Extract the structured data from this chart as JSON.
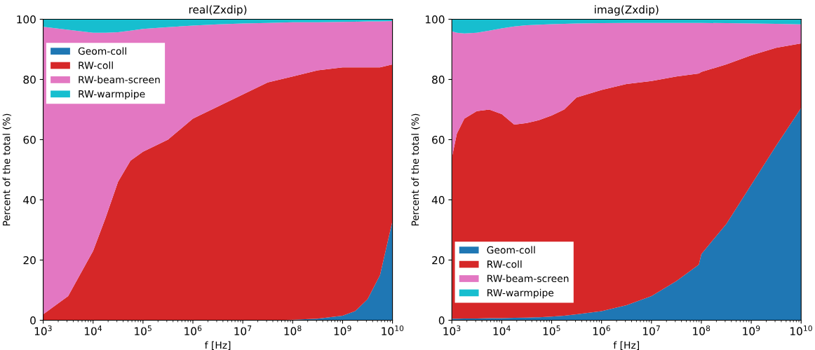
{
  "chart_data": [
    {
      "type": "area",
      "stacked": true,
      "title": "real(Zxdip)",
      "xlabel": "f [Hz]",
      "ylabel": "Percent of the total (%)",
      "log": "x",
      "legend": "top left",
      "grid": false,
      "x": [
        1000.0,
        3162.0,
        10000.0,
        17780.0,
        31620.0,
        56230.0,
        100000.0,
        316200.0,
        1000000.0,
        3162000.0,
        10000000.0,
        31620000.0,
        100000000.0,
        316200000.0,
        1000000000.0,
        1778000000.0,
        3162000000.0,
        5623000000.0,
        10000000000.0
      ],
      "xlim": [
        1000.0,
        10000000000.0
      ],
      "xticks": [
        {
          "value": 1000.0,
          "label": "10$^{3}$"
        },
        {
          "value": 10000.0,
          "label": "10$^{4}$"
        },
        {
          "value": 100000.0,
          "label": "10$^{5}$"
        },
        {
          "value": 1000000.0,
          "label": "10$^{6}$"
        },
        {
          "value": 10000000.0,
          "label": "10$^{7}$"
        },
        {
          "value": 100000000.0,
          "label": "10$^{8}$"
        },
        {
          "value": 1000000000.0,
          "label": "10$^{9}$"
        },
        {
          "value": 10000000000.0,
          "label": "10$^{10}$"
        }
      ],
      "ylim": [
        0,
        100
      ],
      "yticks": [
        0,
        20,
        40,
        60,
        80,
        100
      ],
      "series": [
        {
          "name": "Geom-coll",
          "color": "#1f77b4",
          "values": [
            0,
            0,
            0,
            0,
            0,
            0,
            0,
            0,
            0,
            0,
            0,
            0,
            0.2,
            0.5,
            1.5,
            3,
            7,
            15,
            33
          ]
        },
        {
          "name": "RW-coll",
          "color": "#d62728",
          "values": [
            2,
            8,
            23,
            34,
            46,
            53,
            56,
            60,
            67,
            71,
            75,
            79,
            80.8,
            82.5,
            82.5,
            81,
            77,
            69,
            52
          ]
        },
        {
          "name": "RW-beam-screen",
          "color": "#e377c2",
          "values": [
            95.5,
            88.5,
            72.5,
            61.5,
            49.7,
            43.2,
            40.8,
            37.4,
            30.9,
            27.3,
            23.6,
            19.8,
            18,
            16,
            15.1,
            15.2,
            15.3,
            15.3,
            14.4
          ]
        },
        {
          "name": "RW-warmpipe",
          "color": "#17becf",
          "values": [
            2.5,
            3.5,
            4.5,
            4.5,
            4.3,
            3.8,
            3.2,
            2.6,
            2.1,
            1.7,
            1.4,
            1.2,
            1,
            1,
            0.9,
            0.8,
            0.7,
            0.7,
            0.6
          ]
        }
      ]
    },
    {
      "type": "area",
      "stacked": true,
      "title": "imag(Zxdip)",
      "xlabel": "f [Hz]",
      "ylabel": "Percent of the total (%)",
      "log": "x",
      "legend": "bottom left",
      "grid": false,
      "x": [
        1000.0,
        1259.0,
        1778.0,
        3162.0,
        5623.0,
        10000.0,
        17780.0,
        31620.0,
        56230.0,
        100000.0,
        177800.0,
        316200.0,
        1000000.0,
        3162000.0,
        10000000.0,
        31620000.0,
        89130000.0,
        100000000.0,
        316200000.0,
        1000000000.0,
        3162000000.0,
        10000000000.0
      ],
      "xlim": [
        1000.0,
        10000000000.0
      ],
      "xticks": [
        {
          "value": 1000.0,
          "label": "10$^{3}$"
        },
        {
          "value": 10000.0,
          "label": "10$^{4}$"
        },
        {
          "value": 100000.0,
          "label": "10$^{5}$"
        },
        {
          "value": 1000000.0,
          "label": "10$^{6}$"
        },
        {
          "value": 10000000.0,
          "label": "10$^{7}$"
        },
        {
          "value": 100000000.0,
          "label": "10$^{8}$"
        },
        {
          "value": 1000000000.0,
          "label": "10$^{9}$"
        },
        {
          "value": 10000000000.0,
          "label": "10$^{10}$"
        }
      ],
      "ylim": [
        0,
        100
      ],
      "yticks": [
        0,
        20,
        40,
        60,
        80,
        100
      ],
      "series": [
        {
          "name": "Geom-coll",
          "color": "#1f77b4",
          "values": [
            0.5,
            0.5,
            0.6,
            0.6,
            0.7,
            0.7,
            0.8,
            0.9,
            1,
            1.2,
            1.5,
            2,
            3,
            5,
            8,
            13,
            18.5,
            22,
            32,
            45,
            58,
            70.5
          ]
        },
        {
          "name": "RW-coll",
          "color": "#d62728",
          "values": [
            53.5,
            61.5,
            66.4,
            68.9,
            69.3,
            67.8,
            64.2,
            64.6,
            65.5,
            66.8,
            68.5,
            72,
            73.5,
            73.5,
            71.5,
            68,
            63.5,
            60.5,
            53,
            43,
            32.5,
            21.5
          ]
        },
        {
          "name": "RW-beam-screen",
          "color": "#e377c2",
          "values": [
            42,
            33.5,
            28.3,
            26,
            26.2,
            28.5,
            32.6,
            32.5,
            31.7,
            30.4,
            28.5,
            24.6,
            22.2,
            20.3,
            19.3,
            17.8,
            16.8,
            16.3,
            13.7,
            10.6,
            8,
            6.3
          ]
        },
        {
          "name": "RW-warmpipe",
          "color": "#17becf",
          "values": [
            4,
            4.5,
            4.7,
            4.5,
            3.8,
            3,
            2.4,
            2,
            1.8,
            1.6,
            1.5,
            1.4,
            1.3,
            1.2,
            1.2,
            1.2,
            1.2,
            1.2,
            1.3,
            1.4,
            1.5,
            1.7
          ]
        }
      ]
    }
  ]
}
